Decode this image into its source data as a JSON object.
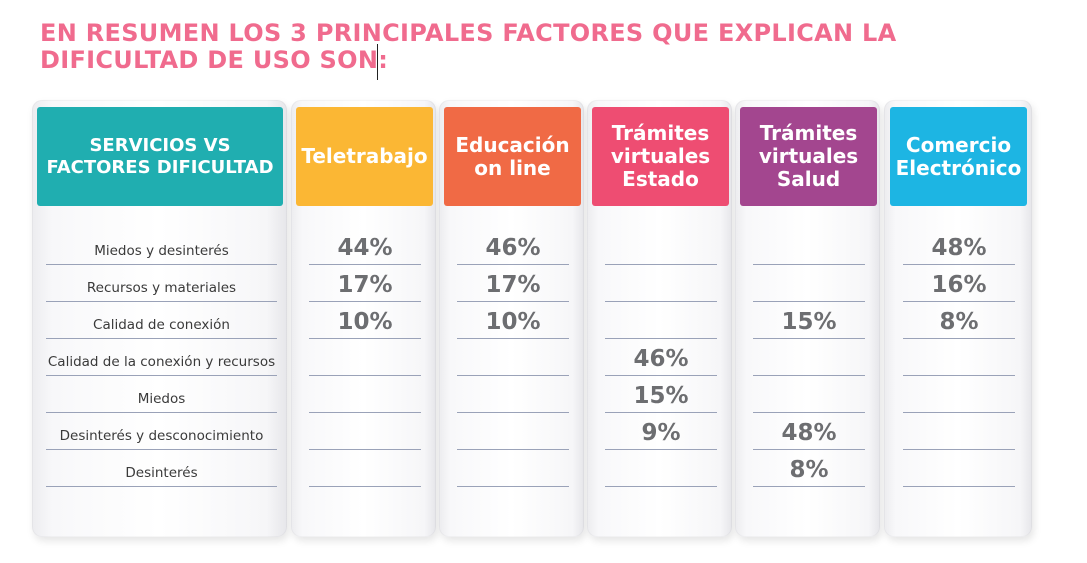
{
  "title": {
    "line1": "EN RESUMEN LOS 3 PRINCIPALES FACTORES QUE EXPLICAN LA",
    "line2": "DIFICULTAD DE USO SON:"
  },
  "table": {
    "header": "SERVICIOS VS FACTORES DIFICULTAD",
    "header_color": "#20aeb0",
    "rows": [
      "Miedos y desinterés",
      "Recursos y materiales",
      "Calidad de conexión",
      "Calidad de la conexión y recursos",
      "Miedos",
      "Desinterés y desconocimiento",
      "Desinterés"
    ],
    "services": [
      {
        "name": "Teletrabajo",
        "color": "#fbb734",
        "values": [
          "44%",
          "17%",
          "10%",
          "",
          "",
          "",
          ""
        ]
      },
      {
        "name": "Educación on line",
        "color": "#f06a45",
        "values": [
          "46%",
          "17%",
          "10%",
          "",
          "",
          "",
          ""
        ]
      },
      {
        "name": "Trámites virtuales Estado",
        "color": "#ee4d72",
        "values": [
          "",
          "",
          "",
          "46%",
          "15%",
          "9%",
          ""
        ]
      },
      {
        "name": "Trámites virtuales Salud",
        "color": "#a3468f",
        "values": [
          "",
          "",
          "15%",
          "",
          "",
          "48%",
          "8%"
        ]
      },
      {
        "name": "Comercio Electrónico",
        "color": "#1db5e3",
        "values": [
          "48%",
          "16%",
          "8%",
          "",
          "",
          "",
          ""
        ]
      }
    ]
  }
}
